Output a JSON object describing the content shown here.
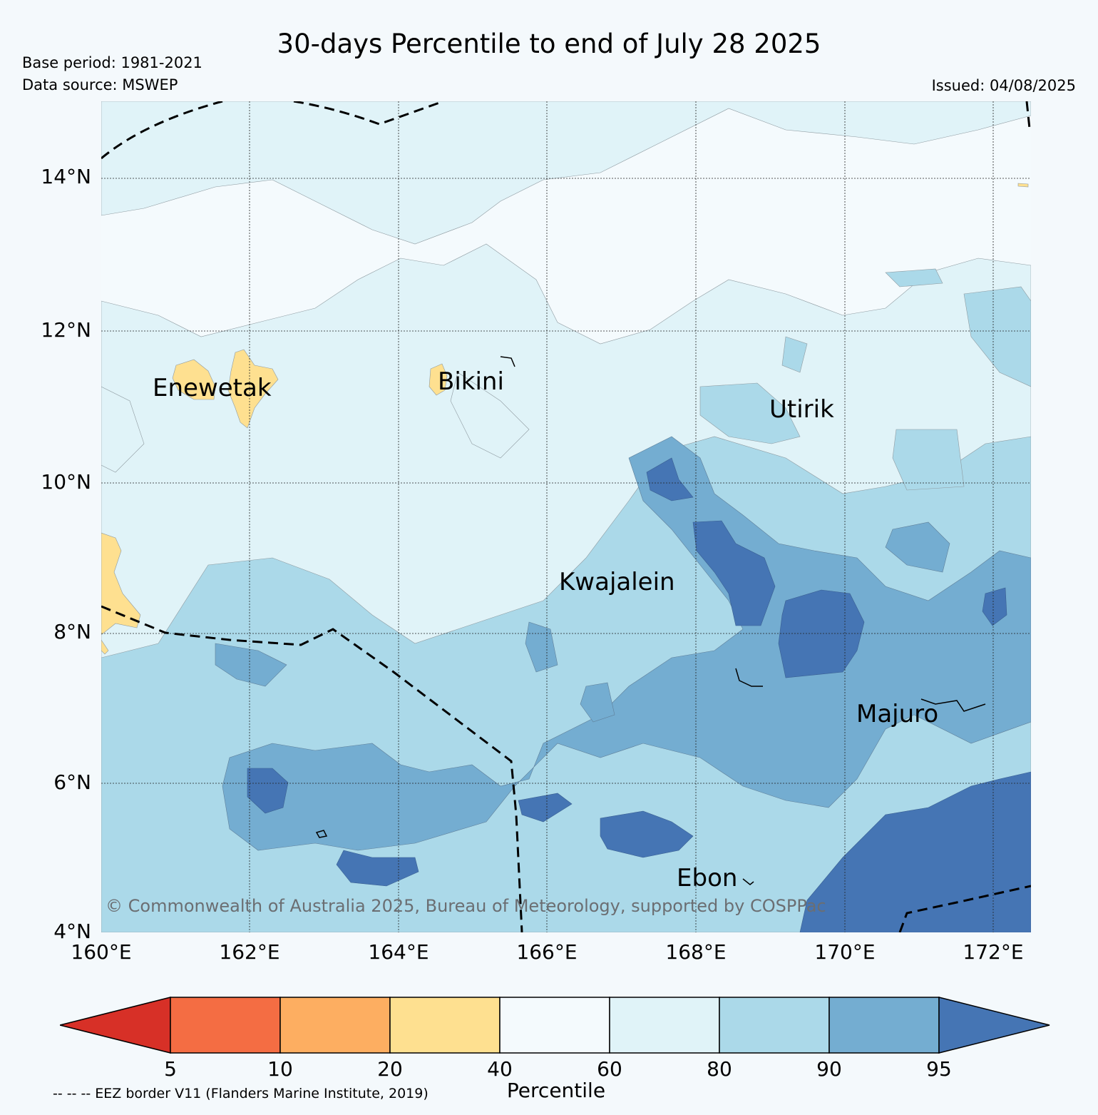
{
  "header": {
    "title": "30-days Percentile to end of July 28 2025",
    "base_period": "Base period: 1981-2021",
    "data_source": "Data source: MSWEP",
    "issued": "Issued: 04/08/2025"
  },
  "map": {
    "lat_labels": [
      "14°N",
      "12°N",
      "10°N",
      "8°N",
      "6°N",
      "4°N"
    ],
    "lon_labels": [
      "160°E",
      "162°E",
      "164°E",
      "166°E",
      "168°E",
      "170°E",
      "172°E"
    ],
    "places": [
      {
        "name": "Enewetak"
      },
      {
        "name": "Bikini"
      },
      {
        "name": "Utirik"
      },
      {
        "name": "Kwajalein"
      },
      {
        "name": "Majuro"
      },
      {
        "name": "Ebon"
      }
    ],
    "copyright": "© Commonwealth of Australia 2025, Bureau of Meteorology, supported by COSPPac",
    "colors": {
      "p_lt5": "#d73027",
      "p5_10": "#f46d43",
      "p10_20": "#fdae61",
      "p20_40": "#fee090",
      "p40_60": "#f4fafd",
      "p60_80": "#e0f3f8",
      "p80_90": "#abd9e9",
      "p90_95": "#74add1",
      "p_gt95": "#4575b4"
    }
  },
  "colorbar": {
    "title": "Percentile",
    "ticks": [
      "5",
      "10",
      "20",
      "40",
      "60",
      "80",
      "90",
      "95"
    ],
    "note": "-- -- -- EEZ border V11 (Flanders Marine Institute, 2019)"
  }
}
